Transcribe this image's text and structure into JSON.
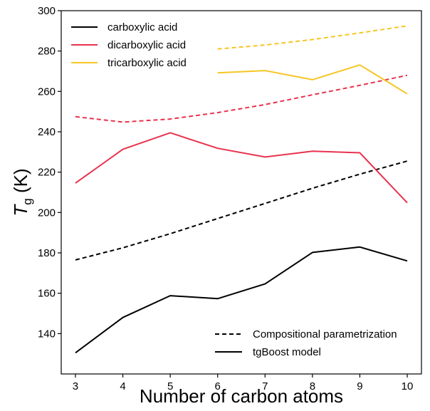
{
  "chart_data": {
    "type": "line",
    "xlabel": "Number of carbon atoms",
    "ylabel_main": "T",
    "ylabel_sub": "g",
    "ylabel_unit": " (K)",
    "x": [
      3,
      4,
      5,
      6,
      7,
      8,
      9,
      10
    ],
    "xlim": [
      2.7,
      10.3
    ],
    "ylim": [
      120,
      300
    ],
    "x_ticks": [
      3,
      4,
      5,
      6,
      7,
      8,
      9,
      10
    ],
    "y_ticks": [
      140,
      160,
      180,
      200,
      220,
      240,
      260,
      280,
      300
    ],
    "grid": false,
    "series": [
      {
        "name": "carboxylic acid",
        "color": "#000000",
        "model": "tgBoost model",
        "style": "solid",
        "x": [
          3,
          4,
          5,
          6,
          7,
          8,
          9,
          10
        ],
        "values": [
          130.5,
          148.0,
          158.8,
          157.3,
          164.6,
          180.2,
          182.9,
          176.0
        ]
      },
      {
        "name": "carboxylic acid",
        "color": "#000000",
        "model": "Compositional parametrization",
        "style": "dashed",
        "x": [
          3,
          4,
          5,
          6,
          7,
          8,
          9,
          10
        ],
        "values": [
          176.5,
          182.5,
          189.5,
          197.0,
          204.5,
          212.0,
          219.0,
          225.5
        ]
      },
      {
        "name": "dicarboxylic acid",
        "color": "#e8334e",
        "model": "tgBoost model",
        "style": "solid",
        "x": [
          3,
          4,
          5,
          6,
          7,
          8,
          9,
          10
        ],
        "values": [
          214.6,
          231.3,
          239.5,
          231.8,
          227.5,
          230.4,
          229.6,
          204.8
        ]
      },
      {
        "name": "dicarboxylic acid",
        "color": "#e8334e",
        "model": "Compositional parametrization",
        "style": "dashed",
        "x": [
          3,
          4,
          5,
          6,
          7,
          8,
          9,
          10
        ],
        "values": [
          247.5,
          244.8,
          246.3,
          249.5,
          253.5,
          258.3,
          263.0,
          268.0
        ]
      },
      {
        "name": "tricarboxylic acid",
        "color": "#f6c624",
        "model": "tgBoost model",
        "style": "solid",
        "x": [
          6,
          7,
          8,
          9,
          10
        ],
        "values": [
          269.2,
          270.3,
          265.8,
          273.1,
          258.8
        ]
      },
      {
        "name": "tricarboxylic acid",
        "color": "#f6c624",
        "model": "Compositional parametrization",
        "style": "dashed",
        "x": [
          6,
          7,
          8,
          9,
          10
        ],
        "values": [
          281.0,
          283.0,
          285.7,
          289.0,
          292.5
        ]
      }
    ],
    "legend_color": {
      "position": "top-left",
      "entries": [
        {
          "label": "carboxylic acid",
          "color": "#000000"
        },
        {
          "label": "dicarboxylic acid",
          "color": "#e8334e"
        },
        {
          "label": "tricarboxylic acid",
          "color": "#f6c624"
        }
      ]
    },
    "legend_style": {
      "position": "bottom-right",
      "entries": [
        {
          "label": "Compositional parametrization",
          "style": "dashed"
        },
        {
          "label": "tgBoost model",
          "style": "solid"
        }
      ]
    }
  }
}
